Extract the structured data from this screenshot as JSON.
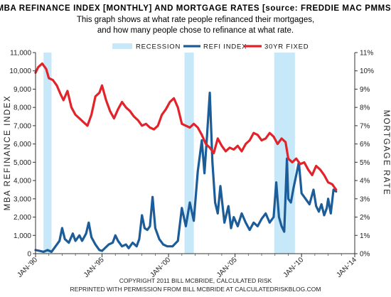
{
  "chart_data": {
    "type": "line",
    "title": "MBA REFINANCE INDEX [MONTHLY] AND MORTGAGE RATES [source: FREDDIE MAC PMMS]",
    "subtitle_lines": [
      "This graph shows at what rate people refinanced their mortgages,",
      "and how many people chose to refinance at what rate."
    ],
    "ylabel_left": "MBA REFINANCE INDEX",
    "ylabel_right": "MORTGAGE RATE",
    "ylim_left": [
      0,
      11000
    ],
    "ylim_right": [
      0,
      11
    ],
    "xlim": [
      1990,
      2014
    ],
    "left_ticks": [
      "0",
      "1,000",
      "2,000",
      "3,000",
      "4,000",
      "5,000",
      "6,000",
      "7,000",
      "8,000",
      "9,000",
      "10,000",
      "11,000"
    ],
    "right_ticks": [
      "0%",
      "1%",
      "2%",
      "3%",
      "4%",
      "5%",
      "6%",
      "7%",
      "8%",
      "9%",
      "10%",
      "11%"
    ],
    "x_tick_labels": [
      "JAN-'90",
      "JAN-'95",
      "JAN-'00",
      "JAN-'05",
      "JAN-'10",
      "JAN-'14"
    ],
    "x_tick_years": [
      1990,
      1995,
      2000,
      2005,
      2010,
      2014
    ],
    "legend": {
      "placement": "top-center",
      "recession_label": "RECESSION",
      "refi_label": "REFI INDEX",
      "rate_label": "30YR FIXED"
    },
    "recessions": [
      [
        1990.6,
        1991.2
      ],
      [
        2001.2,
        2001.9
      ],
      [
        2007.95,
        2009.5
      ]
    ],
    "colors": {
      "recession": "#c6e8f8",
      "refi": "#1c5d99",
      "rate": "#e2232a"
    },
    "series": [
      {
        "name": "REFI INDEX",
        "axis": "left",
        "x": [
          1990.0,
          1990.3,
          1990.6,
          1990.9,
          1991.2,
          1991.5,
          1991.8,
          1992.0,
          1992.2,
          1992.5,
          1992.8,
          1993.0,
          1993.3,
          1993.5,
          1993.8,
          1994.0,
          1994.2,
          1994.5,
          1994.8,
          1995.0,
          1995.5,
          1995.8,
          1996.0,
          1996.2,
          1996.5,
          1996.8,
          1997.0,
          1997.3,
          1997.6,
          1997.8,
          1998.0,
          1998.2,
          1998.4,
          1998.6,
          1998.8,
          1999.0,
          1999.3,
          1999.6,
          1999.9,
          2000.3,
          2000.7,
          2001.0,
          2001.3,
          2001.6,
          2001.9,
          2002.2,
          2002.5,
          2002.7,
          2002.9,
          2003.1,
          2003.3,
          2003.5,
          2003.7,
          2003.9,
          2004.2,
          2004.5,
          2004.7,
          2004.9,
          2005.2,
          2005.5,
          2005.8,
          2006.1,
          2006.4,
          2006.7,
          2007.0,
          2007.3,
          2007.6,
          2007.9,
          2008.1,
          2008.3,
          2008.5,
          2008.7,
          2008.9,
          2009.0,
          2009.2,
          2009.4,
          2009.6,
          2009.8,
          2010.0,
          2010.3,
          2010.6,
          2010.9,
          2011.1,
          2011.3,
          2011.5,
          2011.7,
          2011.9,
          2012.0,
          2012.2,
          2012.4,
          2012.6
        ],
        "values": [
          200,
          150,
          100,
          200,
          100,
          400,
          700,
          1400,
          800,
          600,
          1100,
          700,
          1000,
          700,
          1100,
          1700,
          900,
          500,
          200,
          150,
          500,
          600,
          1000,
          700,
          400,
          500,
          300,
          600,
          400,
          800,
          2100,
          1400,
          1300,
          1500,
          3100,
          1400,
          800,
          500,
          400,
          400,
          700,
          2500,
          1500,
          2800,
          1800,
          4500,
          6200,
          4400,
          6500,
          8800,
          5000,
          2800,
          2200,
          3700,
          1700,
          2600,
          1400,
          2000,
          1500,
          2200,
          1700,
          1300,
          1700,
          1500,
          1900,
          2200,
          1700,
          2000,
          3900,
          2000,
          1500,
          1200,
          5200,
          3000,
          2800,
          3600,
          4300,
          5000,
          3300,
          3000,
          2700,
          3500,
          2600,
          2300,
          2700,
          2100,
          2500,
          3000,
          2200,
          3500,
          3400
        ]
      },
      {
        "name": "30YR FIXED",
        "axis": "right",
        "x": [
          1990.0,
          1990.2,
          1990.5,
          1990.8,
          1991.0,
          1991.3,
          1991.6,
          1991.9,
          1992.1,
          1992.4,
          1992.7,
          1993.0,
          1993.3,
          1993.6,
          1993.9,
          1994.2,
          1994.5,
          1994.8,
          1995.0,
          1995.3,
          1995.6,
          1995.9,
          1996.2,
          1996.5,
          1996.8,
          1997.1,
          1997.4,
          1997.7,
          1998.0,
          1998.3,
          1998.6,
          1998.9,
          1999.2,
          1999.5,
          1999.8,
          2000.1,
          2000.4,
          2000.7,
          2001.0,
          2001.3,
          2001.6,
          2001.9,
          2002.2,
          2002.5,
          2002.8,
          2003.1,
          2003.4,
          2003.7,
          2004.0,
          2004.3,
          2004.6,
          2004.9,
          2005.2,
          2005.5,
          2005.8,
          2006.1,
          2006.4,
          2006.7,
          2007.0,
          2007.3,
          2007.6,
          2007.9,
          2008.2,
          2008.5,
          2008.8,
          2009.0,
          2009.3,
          2009.6,
          2009.9,
          2010.2,
          2010.5,
          2010.8,
          2011.1,
          2011.4,
          2011.7,
          2012.0,
          2012.3,
          2012.6
        ],
        "values": [
          9.9,
          10.2,
          10.4,
          10.1,
          9.6,
          9.5,
          9.2,
          8.7,
          8.4,
          8.9,
          8.0,
          7.6,
          7.4,
          7.2,
          7.0,
          7.6,
          8.6,
          8.8,
          9.2,
          8.4,
          7.8,
          7.4,
          7.9,
          8.3,
          8.0,
          7.8,
          7.5,
          7.3,
          7.0,
          7.1,
          6.9,
          6.8,
          7.0,
          7.6,
          7.9,
          8.3,
          8.5,
          8.0,
          7.1,
          7.0,
          6.9,
          7.1,
          6.9,
          6.5,
          6.0,
          5.8,
          5.5,
          6.3,
          5.9,
          5.6,
          5.8,
          5.7,
          5.9,
          5.6,
          6.0,
          6.2,
          6.6,
          6.5,
          6.2,
          6.3,
          6.6,
          6.4,
          6.0,
          6.3,
          6.1,
          5.2,
          5.0,
          5.2,
          4.9,
          5.0,
          4.6,
          4.3,
          4.8,
          4.6,
          4.3,
          3.9,
          3.8,
          3.5
        ]
      }
    ]
  },
  "footer_lines": [
    "COPYRIGHT 2011 BILL MCBRIDE, CALCULATED RISK",
    "REPRINTED WITH PERMISSION FROM BILL MCBRIDE AT CALCULATEDRISKBLOG.COM"
  ]
}
